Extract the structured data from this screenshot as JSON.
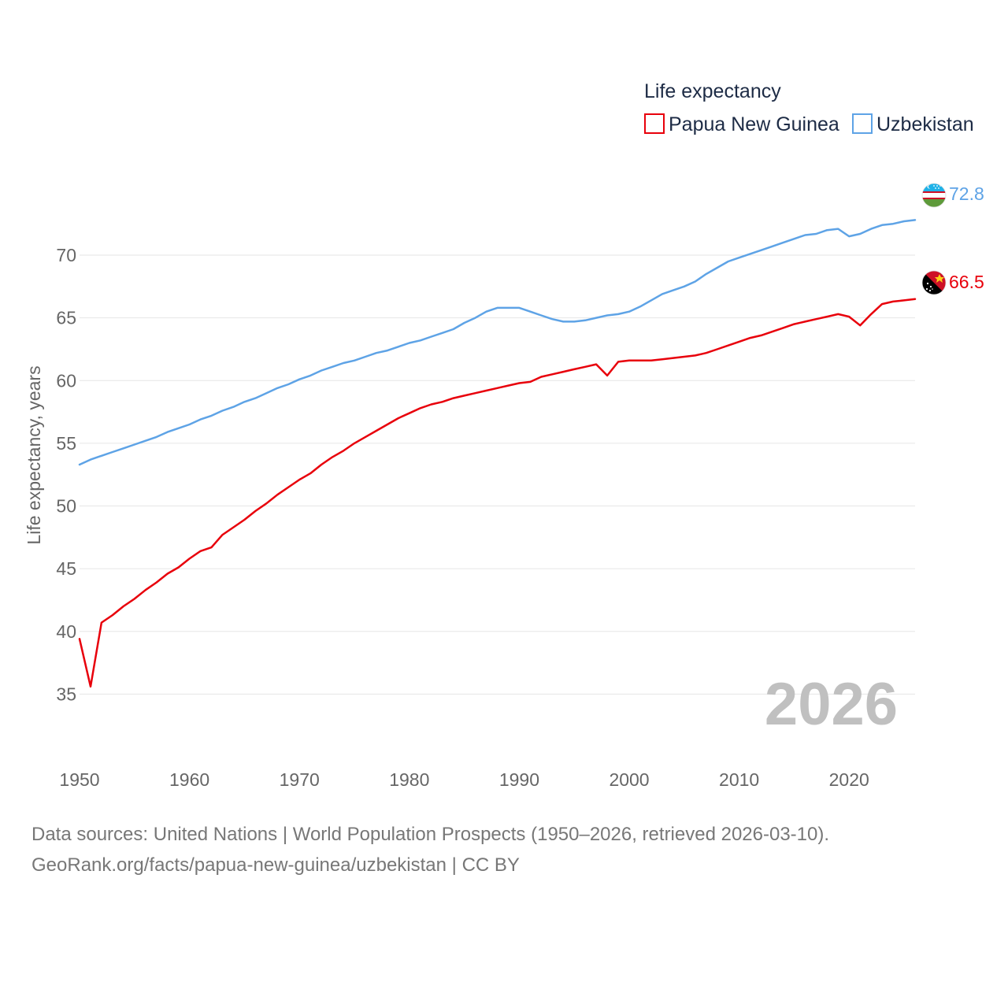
{
  "chart_data": {
    "type": "line",
    "legend_title": "Life expectancy",
    "ylabel": "Life expectancy, years",
    "xlabel": "",
    "xlim": [
      1950,
      2026
    ],
    "ylim": [
      32.7,
      74.9
    ],
    "x_ticks": [
      1950,
      1960,
      1970,
      1980,
      1990,
      2000,
      2010,
      2020
    ],
    "y_ticks": [
      35,
      40,
      45,
      50,
      55,
      60,
      65,
      70
    ],
    "grid": true,
    "legend_position": "top-right",
    "year_watermark": "2026",
    "x": [
      1950,
      1951,
      1952,
      1953,
      1954,
      1955,
      1956,
      1957,
      1958,
      1959,
      1960,
      1961,
      1962,
      1963,
      1964,
      1965,
      1966,
      1967,
      1968,
      1969,
      1970,
      1971,
      1972,
      1973,
      1974,
      1975,
      1976,
      1977,
      1978,
      1979,
      1980,
      1981,
      1982,
      1983,
      1984,
      1985,
      1986,
      1987,
      1988,
      1989,
      1990,
      1991,
      1992,
      1993,
      1994,
      1995,
      1996,
      1997,
      1998,
      1999,
      2000,
      2001,
      2002,
      2003,
      2004,
      2005,
      2006,
      2007,
      2008,
      2009,
      2010,
      2011,
      2012,
      2013,
      2014,
      2015,
      2016,
      2017,
      2018,
      2019,
      2020,
      2021,
      2022,
      2023,
      2024,
      2025,
      2026
    ],
    "series": [
      {
        "name": "Papua New Guinea",
        "color": "#e8000b",
        "end_label": "66.5",
        "values": [
          39.4,
          35.6,
          40.7,
          41.3,
          42.0,
          42.6,
          43.3,
          43.9,
          44.6,
          45.1,
          45.8,
          46.4,
          46.7,
          47.7,
          48.3,
          48.9,
          49.6,
          50.2,
          50.9,
          51.5,
          52.1,
          52.6,
          53.3,
          53.9,
          54.4,
          55.0,
          55.5,
          56.0,
          56.5,
          57.0,
          57.4,
          57.8,
          58.1,
          58.3,
          58.6,
          58.8,
          59.0,
          59.2,
          59.4,
          59.6,
          59.8,
          59.9,
          60.3,
          60.5,
          60.7,
          60.9,
          61.1,
          61.3,
          60.4,
          61.5,
          61.6,
          61.6,
          61.6,
          61.7,
          61.8,
          61.9,
          62.0,
          62.2,
          62.5,
          62.8,
          63.1,
          63.4,
          63.6,
          63.9,
          64.2,
          64.5,
          64.7,
          64.9,
          65.1,
          65.3,
          65.1,
          64.4,
          65.3,
          66.1,
          66.3,
          66.4,
          66.5
        ]
      },
      {
        "name": "Uzbekistan",
        "color": "#5ea3e6",
        "end_label": "72.8",
        "values": [
          53.3,
          53.7,
          54.0,
          54.3,
          54.6,
          54.9,
          55.2,
          55.5,
          55.9,
          56.2,
          56.5,
          56.9,
          57.2,
          57.6,
          57.9,
          58.3,
          58.6,
          59.0,
          59.4,
          59.7,
          60.1,
          60.4,
          60.8,
          61.1,
          61.4,
          61.6,
          61.9,
          62.2,
          62.4,
          62.7,
          63.0,
          63.2,
          63.5,
          63.8,
          64.1,
          64.6,
          65.0,
          65.5,
          65.8,
          65.8,
          65.8,
          65.5,
          65.2,
          64.9,
          64.7,
          64.7,
          64.8,
          65.0,
          65.2,
          65.3,
          65.5,
          65.9,
          66.4,
          66.9,
          67.2,
          67.5,
          67.9,
          68.5,
          69.0,
          69.5,
          69.8,
          70.1,
          70.4,
          70.7,
          71.0,
          71.3,
          71.6,
          71.7,
          72.0,
          72.1,
          71.5,
          71.7,
          72.1,
          72.4,
          72.5,
          72.7,
          72.8
        ]
      }
    ]
  },
  "sources": {
    "line1": "Data sources: United Nations | World Population Prospects (1950–2026, retrieved 2026-03-10).",
    "line2": "GeoRank.org/facts/papua-new-guinea/uzbekistan | CC BY"
  }
}
